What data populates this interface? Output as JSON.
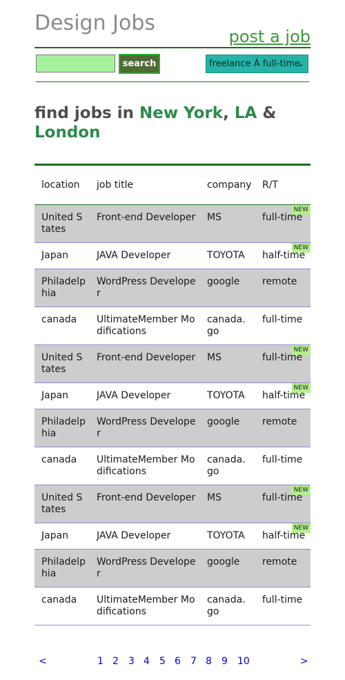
{
  "header": {
    "logo": "Design Jobs",
    "post_link": "post a job"
  },
  "search": {
    "value": "",
    "placeholder": "",
    "button_label": "search",
    "type_select": "freelance Á full-time"
  },
  "headline": {
    "prefix": "find jobs in ",
    "city1": "New York",
    "sep1": ", ",
    "city2": "LA",
    "sep2": " & ",
    "city3": "London"
  },
  "table": {
    "headers": [
      "location",
      "job title",
      "company",
      "R/T"
    ],
    "badge": "NEW",
    "rows": [
      {
        "location": "United States",
        "title": "Front-end Developer",
        "company": "MS",
        "rt": "full-time",
        "is_new": true
      },
      {
        "location": "Japan",
        "title": "JAVA Developer",
        "company": "TOYOTA",
        "rt": "half-time",
        "is_new": true
      },
      {
        "location": "Philadelphia",
        "title": "WordPress Developer",
        "company": "google",
        "rt": "remote",
        "is_new": false
      },
      {
        "location": "canada",
        "title": "UltimateMember Modifications",
        "company": "canada.go",
        "rt": "full-time",
        "is_new": false
      },
      {
        "location": "United States",
        "title": "Front-end Developer",
        "company": "MS",
        "rt": "full-time",
        "is_new": true
      },
      {
        "location": "Japan",
        "title": "JAVA Developer",
        "company": "TOYOTA",
        "rt": "half-time",
        "is_new": true
      },
      {
        "location": "Philadelphia",
        "title": "WordPress Developer",
        "company": "google",
        "rt": "remote",
        "is_new": false
      },
      {
        "location": "canada",
        "title": "UltimateMember Modifications",
        "company": "canada.go",
        "rt": "full-time",
        "is_new": false
      },
      {
        "location": "United States",
        "title": "Front-end Developer",
        "company": "MS",
        "rt": "full-time",
        "is_new": true
      },
      {
        "location": "Japan",
        "title": "JAVA Developer",
        "company": "TOYOTA",
        "rt": "half-time",
        "is_new": true
      },
      {
        "location": "Philadelphia",
        "title": "WordPress Developer",
        "company": "google",
        "rt": "remote",
        "is_new": false
      },
      {
        "location": "canada",
        "title": "UltimateMember Modifications",
        "company": "canada.go",
        "rt": "full-time",
        "is_new": false
      }
    ]
  },
  "pager": {
    "prev": "<",
    "pages": [
      "1",
      "2",
      "3",
      "4",
      "5",
      "6",
      "7",
      "8",
      "9",
      "10"
    ],
    "next": ">"
  },
  "colors": {
    "accent_green": "#1f6b1f",
    "city_green": "#2d8a4c",
    "input_green": "#a6f29c",
    "select_teal": "#26b3a8",
    "row_grey": "#cdcdcd",
    "badge_green": "#b4f08e",
    "link_blue": "#0000cc"
  }
}
